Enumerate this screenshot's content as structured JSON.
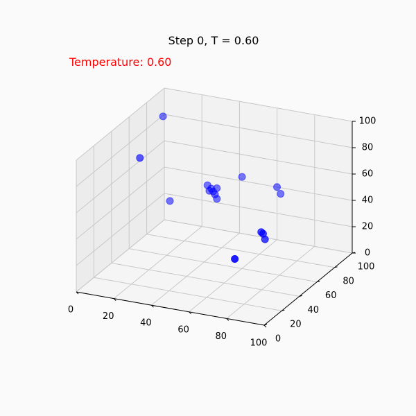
{
  "chart_data": {
    "type": "scatter",
    "projection": "3d",
    "title": "Step 0, T = 0.60",
    "annotation": "Temperature: 0.60",
    "annotation_color": "#ff0000",
    "point_color": "#0000ff",
    "xlabel": "",
    "ylabel": "",
    "zlabel": "",
    "xlim": [
      0,
      100
    ],
    "ylim": [
      0,
      100
    ],
    "zlim": [
      0,
      100
    ],
    "xticks": [
      "0",
      "20",
      "40",
      "60",
      "80",
      "100"
    ],
    "yticks": [
      "0",
      "20",
      "40",
      "60",
      "80",
      "100"
    ],
    "zticks": [
      "0",
      "20",
      "40",
      "60",
      "80",
      "100"
    ],
    "grid": true,
    "points": [
      {
        "x": 2,
        "y": 68,
        "z": 65
      },
      {
        "x": 4,
        "y": 90,
        "z": 85
      },
      {
        "x": 10,
        "y": 85,
        "z": 25
      },
      {
        "x": 30,
        "y": 85,
        "z": 42
      },
      {
        "x": 31,
        "y": 85,
        "z": 38
      },
      {
        "x": 32,
        "y": 85,
        "z": 40
      },
      {
        "x": 33,
        "y": 85,
        "z": 38
      },
      {
        "x": 34,
        "y": 85,
        "z": 36
      },
      {
        "x": 35,
        "y": 85,
        "z": 33
      },
      {
        "x": 35,
        "y": 85,
        "z": 41
      },
      {
        "x": 47,
        "y": 88,
        "z": 51
      },
      {
        "x": 67,
        "y": 85,
        "z": 50
      },
      {
        "x": 68,
        "y": 87,
        "z": 44
      },
      {
        "x": 75,
        "y": 50,
        "z": 37
      },
      {
        "x": 76,
        "y": 50,
        "z": 36
      },
      {
        "x": 77,
        "y": 50,
        "z": 32
      },
      {
        "x": 75,
        "y": 20,
        "z": 33
      }
    ]
  }
}
